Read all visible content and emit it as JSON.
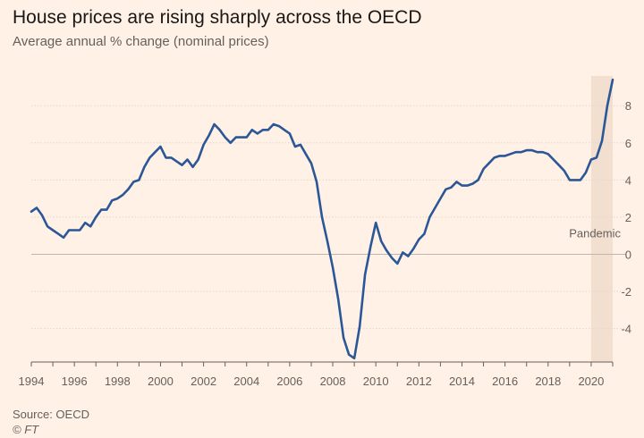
{
  "header": {
    "title": "House prices are rising sharply across the OECD",
    "subtitle": "Average annual % change (nominal prices)"
  },
  "footer": {
    "source": "Source: OECD",
    "credit": "© FT"
  },
  "colors": {
    "background": "#fff1e5",
    "line": "#2b5797",
    "grid": "#e0d7ce",
    "shade": "#f2dfd0",
    "zero_line": "#bfb6ad"
  },
  "chart_data": {
    "type": "line",
    "title": "House prices are rising sharply across the OECD",
    "subtitle": "Average annual % change (nominal prices)",
    "xlabel": "",
    "ylabel": "",
    "xlim": [
      1994,
      2021
    ],
    "ylim": [
      -5.8,
      9.6
    ],
    "x_ticks": [
      1994,
      1996,
      1998,
      2000,
      2002,
      2004,
      2006,
      2008,
      2010,
      2012,
      2014,
      2016,
      2018,
      2020
    ],
    "x_tick_labels": [
      "1994",
      "1996",
      "1998",
      "2000",
      "2002",
      "2004",
      "2006",
      "2008",
      "2010",
      "2012",
      "2014",
      "2016",
      "2018",
      "2020"
    ],
    "y_ticks": [
      -4,
      -2,
      0,
      2,
      4,
      6,
      8
    ],
    "y_tick_labels": [
      "-4",
      "-2",
      "0",
      "2",
      "4",
      "6",
      "8"
    ],
    "grid": true,
    "y_axis_side": "right",
    "annotation": {
      "label": "Pandemic",
      "x_start": 2020,
      "x_end": 2021
    },
    "series": [
      {
        "color": "#2b5797",
        "x": [
          1994.0,
          1994.25,
          1994.5,
          1994.75,
          1995.0,
          1995.25,
          1995.5,
          1995.75,
          1996.0,
          1996.25,
          1996.5,
          1996.75,
          1997.0,
          1997.25,
          1997.5,
          1997.75,
          1998.0,
          1998.25,
          1998.5,
          1998.75,
          1999.0,
          1999.25,
          1999.5,
          1999.75,
          2000.0,
          2000.25,
          2000.5,
          2000.75,
          2001.0,
          2001.25,
          2001.5,
          2001.75,
          2002.0,
          2002.25,
          2002.5,
          2002.75,
          2003.0,
          2003.25,
          2003.5,
          2003.75,
          2004.0,
          2004.25,
          2004.5,
          2004.75,
          2005.0,
          2005.25,
          2005.5,
          2005.75,
          2006.0,
          2006.25,
          2006.5,
          2006.75,
          2007.0,
          2007.25,
          2007.5,
          2007.75,
          2008.0,
          2008.25,
          2008.5,
          2008.75,
          2009.0,
          2009.25,
          2009.5,
          2009.75,
          2010.0,
          2010.25,
          2010.5,
          2010.75,
          2011.0,
          2011.25,
          2011.5,
          2011.75,
          2012.0,
          2012.25,
          2012.5,
          2012.75,
          2013.0,
          2013.25,
          2013.5,
          2013.75,
          2014.0,
          2014.25,
          2014.5,
          2014.75,
          2015.0,
          2015.25,
          2015.5,
          2015.75,
          2016.0,
          2016.25,
          2016.5,
          2016.75,
          2017.0,
          2017.25,
          2017.5,
          2017.75,
          2018.0,
          2018.25,
          2018.5,
          2018.75,
          2019.0,
          2019.25,
          2019.5,
          2019.75,
          2020.0,
          2020.25,
          2020.5,
          2020.75,
          2021.0
        ],
        "y": [
          2.3,
          2.5,
          2.1,
          1.5,
          1.3,
          1.1,
          0.9,
          1.3,
          1.3,
          1.3,
          1.7,
          1.5,
          2.0,
          2.4,
          2.4,
          2.9,
          3.0,
          3.2,
          3.5,
          3.9,
          4.0,
          4.7,
          5.2,
          5.5,
          5.8,
          5.2,
          5.2,
          5.0,
          4.8,
          5.1,
          4.7,
          5.1,
          5.9,
          6.4,
          7.0,
          6.7,
          6.3,
          6.0,
          6.3,
          6.3,
          6.3,
          6.7,
          6.5,
          6.7,
          6.7,
          7.0,
          6.9,
          6.7,
          6.5,
          5.8,
          5.9,
          5.4,
          4.9,
          3.9,
          2.0,
          0.7,
          -0.7,
          -2.4,
          -4.5,
          -5.4,
          -5.6,
          -3.9,
          -1.1,
          0.4,
          1.7,
          0.7,
          0.2,
          -0.2,
          -0.5,
          0.1,
          -0.1,
          0.3,
          0.8,
          1.1,
          2.0,
          2.5,
          3.0,
          3.5,
          3.6,
          3.9,
          3.7,
          3.7,
          3.8,
          4.0,
          4.6,
          4.9,
          5.2,
          5.3,
          5.3,
          5.4,
          5.5,
          5.5,
          5.6,
          5.6,
          5.5,
          5.5,
          5.4,
          5.1,
          4.8,
          4.5,
          4.0,
          4.0,
          4.0,
          4.4,
          5.1,
          5.2,
          6.1,
          8.0,
          9.4
        ]
      }
    ]
  }
}
